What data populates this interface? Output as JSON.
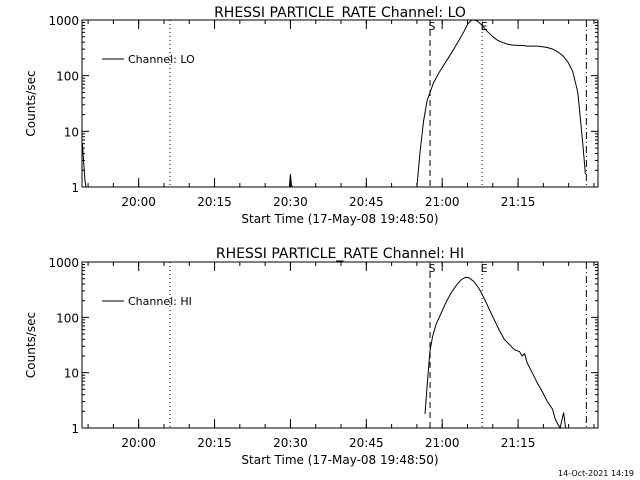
{
  "footer": {
    "timestamp": "14-Oct-2021 14:19"
  },
  "chart_data": [
    {
      "type": "line",
      "title": "RHESSI PARTICLE_RATE Channel: LO",
      "xlabel": "Start Time (17-May-08 19:48:50)",
      "ylabel": "Counts/sec",
      "x_unit": "minutes after 19:48:50",
      "xlim": [
        0,
        102
      ],
      "ylim": [
        1,
        1000
      ],
      "yscale": "log",
      "x_ticks": [
        {
          "label": "20:00",
          "x": 11.2
        },
        {
          "label": "20:15",
          "x": 26.2
        },
        {
          "label": "20:30",
          "x": 41.2
        },
        {
          "label": "20:45",
          "x": 56.2
        },
        {
          "label": "21:00",
          "x": 71.2
        },
        {
          "label": "21:15",
          "x": 86.2
        }
      ],
      "y_ticks": [
        {
          "label": "1",
          "y": 1
        },
        {
          "label": "10",
          "y": 10
        },
        {
          "label": "100",
          "y": 100
        },
        {
          "label": "1000",
          "y": 1000
        }
      ],
      "legend": {
        "label": "Channel: LO",
        "position": "top-left"
      },
      "markers": [
        {
          "x": 17.4,
          "style": "dotted",
          "label": ""
        },
        {
          "x": 68.8,
          "style": "dashed",
          "label": "S"
        },
        {
          "x": 79.1,
          "style": "dotted",
          "label": "E"
        },
        {
          "x": 99.7,
          "style": "dashdot",
          "label": ""
        }
      ],
      "series": [
        {
          "segments": [
            [
              [
                0.1,
                6
              ],
              [
                0.3,
                3
              ],
              [
                0.6,
                1.3
              ],
              [
                0.8,
                1
              ]
            ],
            [
              [
                41.0,
                1
              ],
              [
                41.2,
                1.7
              ],
              [
                41.4,
                1.1
              ],
              [
                41.6,
                1
              ]
            ],
            [
              [
                66.2,
                1
              ],
              [
                66.8,
                4
              ],
              [
                67.5,
                15
              ],
              [
                68.2,
                35
              ],
              [
                68.8,
                50
              ],
              [
                69.5,
                75
              ],
              [
                70.5,
                110
              ],
              [
                71.5,
                155
              ],
              [
                72.5,
                215
              ],
              [
                73.5,
                300
              ],
              [
                74.5,
                430
              ],
              [
                75.5,
                620
              ],
              [
                76.3,
                860
              ],
              [
                77.0,
                990
              ],
              [
                77.5,
                1000
              ],
              [
                78.2,
                950
              ],
              [
                79.0,
                820
              ],
              [
                80.0,
                640
              ],
              [
                81.0,
                520
              ],
              [
                82.0,
                440
              ],
              [
                83.0,
                400
              ],
              [
                84.0,
                370
              ],
              [
                85.0,
                355
              ],
              [
                86.0,
                350
              ],
              [
                87.0,
                350
              ],
              [
                88.0,
                340
              ],
              [
                89.0,
                340
              ],
              [
                90.0,
                340
              ],
              [
                91.0,
                330
              ],
              [
                92.0,
                320
              ],
              [
                93.0,
                300
              ],
              [
                94.0,
                270
              ],
              [
                95.0,
                230
              ],
              [
                96.0,
                180
              ],
              [
                97.0,
                120
              ],
              [
                98.0,
                50
              ],
              [
                99.0,
                6
              ],
              [
                99.5,
                1.7
              ]
            ]
          ]
        }
      ]
    },
    {
      "type": "line",
      "title": "RHESSI PARTICLE_RATE Channel: HI",
      "xlabel": "Start Time (17-May-08 19:48:50)",
      "ylabel": "Counts/sec",
      "x_unit": "minutes after 19:48:50",
      "xlim": [
        0,
        102
      ],
      "ylim": [
        1,
        1000
      ],
      "yscale": "log",
      "x_ticks": [
        {
          "label": "20:00",
          "x": 11.2
        },
        {
          "label": "20:15",
          "x": 26.2
        },
        {
          "label": "20:30",
          "x": 41.2
        },
        {
          "label": "20:45",
          "x": 56.2
        },
        {
          "label": "21:00",
          "x": 71.2
        },
        {
          "label": "21:15",
          "x": 86.2
        }
      ],
      "y_ticks": [
        {
          "label": "1",
          "y": 1
        },
        {
          "label": "10",
          "y": 10
        },
        {
          "label": "100",
          "y": 100
        },
        {
          "label": "1000",
          "y": 1000
        }
      ],
      "legend": {
        "label": "Channel: HI",
        "position": "top-left"
      },
      "markers": [
        {
          "x": 17.4,
          "style": "dotted",
          "label": ""
        },
        {
          "x": 68.8,
          "style": "dashed",
          "label": "S"
        },
        {
          "x": 79.1,
          "style": "dotted",
          "label": "E"
        },
        {
          "x": 99.7,
          "style": "dashdot",
          "label": ""
        }
      ],
      "series": [
        {
          "segments": [
            [
              [
                67.8,
                1.8
              ],
              [
                68.3,
                7
              ],
              [
                68.8,
                25
              ],
              [
                69.3,
                45
              ],
              [
                70.0,
                75
              ],
              [
                71.0,
                120
              ],
              [
                72.0,
                190
              ],
              [
                73.0,
                280
              ],
              [
                74.0,
                380
              ],
              [
                75.0,
                480
              ],
              [
                75.8,
                530
              ],
              [
                76.5,
                520
              ],
              [
                77.5,
                440
              ],
              [
                78.5,
                330
              ],
              [
                79.5,
                220
              ],
              [
                80.5,
                140
              ],
              [
                81.5,
                90
              ],
              [
                82.5,
                58
              ],
              [
                83.5,
                40
              ],
              [
                84.5,
                32
              ],
              [
                85.5,
                26
              ],
              [
                86.5,
                24
              ],
              [
                87.0,
                20
              ],
              [
                87.5,
                22
              ],
              [
                88.0,
                15
              ],
              [
                89.0,
                10
              ],
              [
                90.0,
                6.5
              ],
              [
                91.0,
                4.5
              ],
              [
                92.0,
                3.0
              ],
              [
                93.0,
                2.2
              ],
              [
                93.5,
                1.5
              ],
              [
                94.0,
                1.2
              ],
              [
                94.5,
                1.0
              ],
              [
                95.2,
                1.9
              ],
              [
                95.6,
                1.0
              ]
            ]
          ]
        }
      ]
    }
  ]
}
